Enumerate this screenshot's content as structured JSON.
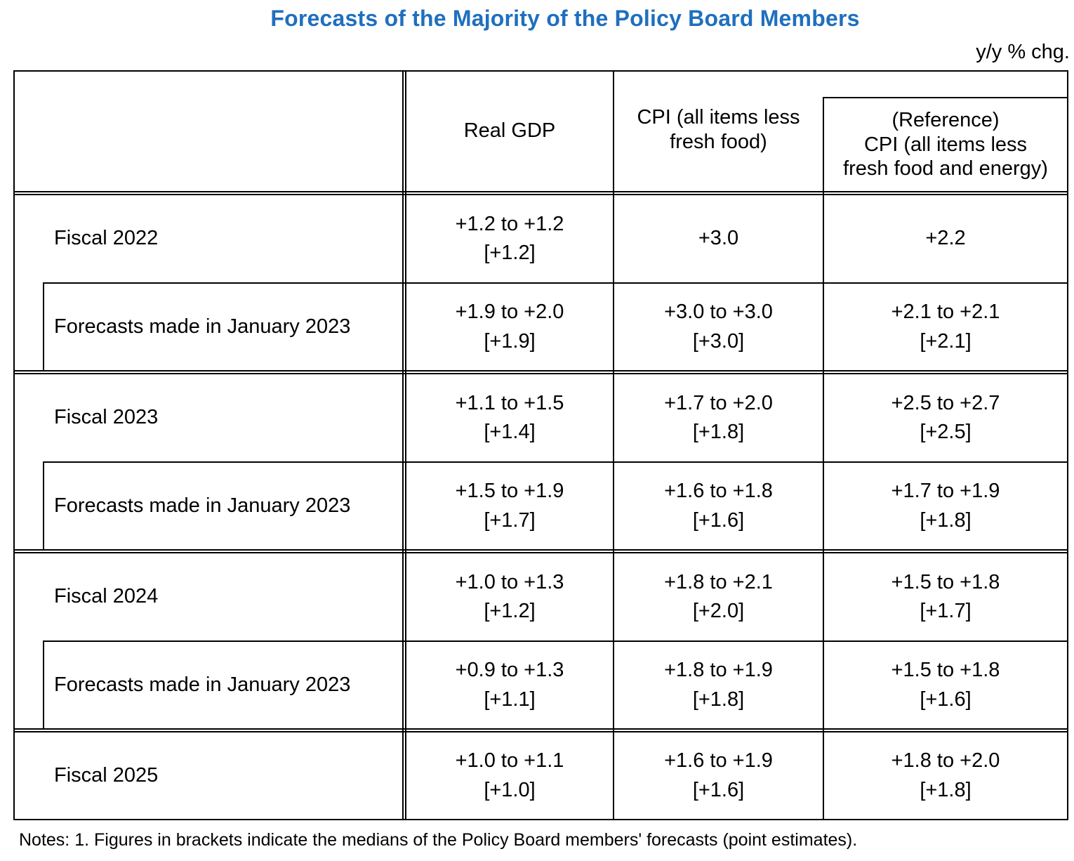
{
  "title": "Forecasts of the Majority of the Policy Board Members",
  "unit": "y/y % chg.",
  "columns": {
    "gdp": "Real GDP",
    "cpi": "CPI (all items less\nfresh food)",
    "core": "(Reference)\nCPI (all items less\nfresh food and energy)"
  },
  "rows": [
    {
      "label": "Fiscal 2022",
      "gdp": "+1.2 to +1.2\n[+1.2]",
      "cpi": "+3.0",
      "core": "+2.2"
    },
    {
      "label": "Forecasts made in January 2023",
      "gdp": "+1.9 to +2.0\n[+1.9]",
      "cpi": "+3.0 to +3.0\n[+3.0]",
      "core": "+2.1 to +2.1\n[+2.1]"
    },
    {
      "label": "Fiscal 2023",
      "gdp": "+1.1 to +1.5\n[+1.4]",
      "cpi": "+1.7 to +2.0\n[+1.8]",
      "core": "+2.5 to +2.7\n[+2.5]"
    },
    {
      "label": "Forecasts made in January 2023",
      "gdp": "+1.5 to +1.9\n[+1.7]",
      "cpi": "+1.6 to +1.8\n[+1.6]",
      "core": "+1.7 to +1.9\n[+1.8]"
    },
    {
      "label": "Fiscal 2024",
      "gdp": "+1.0 to +1.3\n[+1.2]",
      "cpi": "+1.8 to +2.1\n[+2.0]",
      "core": "+1.5 to +1.8\n[+1.7]"
    },
    {
      "label": "Forecasts made in January 2023",
      "gdp": "+0.9 to +1.3\n[+1.1]",
      "cpi": "+1.8 to +1.9\n[+1.8]",
      "core": "+1.5 to +1.8\n[+1.6]"
    },
    {
      "label": "Fiscal 2025",
      "gdp": "+1.0 to +1.1\n[+1.0]",
      "cpi": "+1.6 to +1.9\n[+1.6]",
      "core": "+1.8 to +2.0\n[+1.8]"
    }
  ],
  "notes": "Notes: 1. Figures in brackets indicate the medians of the Policy Board members' forecasts (point estimates).",
  "colors": {
    "title": "#1f6fbf",
    "rule": "#000000"
  }
}
